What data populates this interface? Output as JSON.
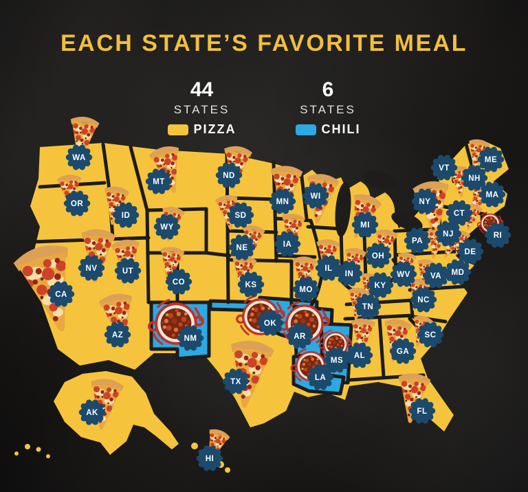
{
  "title": "EACH STATE’S FAVORITE MEAL",
  "legend": [
    {
      "count": "44",
      "label": "STATES",
      "food": "PIZZA",
      "color": "#F5C43C"
    },
    {
      "count": "6",
      "label": "STATES",
      "food": "CHILI",
      "color": "#2CA9E2"
    }
  ],
  "colors": {
    "title": "#F2BE3C",
    "pizza": "#F5C43C",
    "chili": "#2CA9E2",
    "badge": "#1B4A6D",
    "border": "#1D1C1B",
    "lake": "#1E1D1B"
  },
  "map": {
    "states": [
      {
        "abbr": "WA",
        "food": "pizza",
        "badge": [
          115,
          229
        ],
        "icon": [
          120,
          202
        ],
        "size": 72,
        "rot": 8
      },
      {
        "abbr": "OR",
        "food": "pizza",
        "badge": [
          112,
          296
        ],
        "icon": [
          102,
          281
        ],
        "size": 60,
        "rot": -4
      },
      {
        "abbr": "ID",
        "food": "pizza",
        "badge": [
          183,
          313
        ],
        "icon": [
          167,
          299
        ],
        "size": 62,
        "rot": 8
      },
      {
        "abbr": "MT",
        "food": "pizza",
        "badge": [
          231,
          264
        ],
        "icon": [
          245,
          247
        ],
        "size": 76,
        "rot": -14
      },
      {
        "abbr": "WY",
        "food": "pizza",
        "badge": [
          243,
          330
        ],
        "icon": [
          249,
          326
        ],
        "size": 56,
        "rot": 10
      },
      {
        "abbr": "NV",
        "food": "pizza",
        "badge": [
          133,
          390
        ],
        "icon": [
          141,
          372
        ],
        "size": 86,
        "rot": 4
      },
      {
        "abbr": "UT",
        "food": "pizza",
        "badge": [
          186,
          394
        ],
        "icon": [
          185,
          380
        ],
        "size": 70,
        "rot": -6
      },
      {
        "abbr": "CA",
        "food": "pizza",
        "badge": [
          89,
          428
        ],
        "icon": [
          73,
          420
        ],
        "size": 140,
        "rot": -16
      },
      {
        "abbr": "AZ",
        "food": "pizza",
        "badge": [
          171,
          487
        ],
        "icon": [
          173,
          465
        ],
        "size": 84,
        "rot": -10
      },
      {
        "abbr": "CO",
        "food": "pizza",
        "badge": [
          260,
          410
        ],
        "icon": [
          248,
          386
        ],
        "size": 60,
        "rot": 8
      },
      {
        "abbr": "NM",
        "food": "chili",
        "badge": [
          277,
          492
        ],
        "icon": [
          256,
          471
        ],
        "size": 64
      },
      {
        "abbr": "ND",
        "food": "pizza",
        "badge": [
          333,
          255
        ],
        "icon": [
          343,
          244
        ],
        "size": 70,
        "rot": 8
      },
      {
        "abbr": "SD",
        "food": "pizza",
        "badge": [
          350,
          313
        ],
        "icon": [
          332,
          309
        ],
        "size": 56,
        "rot": -8
      },
      {
        "abbr": "NE",
        "food": "pizza",
        "badge": [
          352,
          360
        ],
        "icon": [
          366,
          353
        ],
        "size": 56,
        "rot": 10
      },
      {
        "abbr": "KS",
        "food": "pizza",
        "badge": [
          365,
          414
        ],
        "icon": [
          354,
          399
        ],
        "size": 60,
        "rot": 5
      },
      {
        "abbr": "OK",
        "food": "chili",
        "badge": [
          393,
          470
        ],
        "icon": [
          379,
          461
        ],
        "size": 56
      },
      {
        "abbr": "TX",
        "food": "pizza",
        "badge": [
          343,
          555
        ],
        "icon": [
          362,
          544
        ],
        "size": 108,
        "rot": 8
      },
      {
        "abbr": "MN",
        "food": "pizza",
        "badge": [
          411,
          293
        ],
        "icon": [
          415,
          277
        ],
        "size": 80,
        "rot": 4
      },
      {
        "abbr": "IA",
        "food": "pizza",
        "badge": [
          418,
          355
        ],
        "icon": [
          425,
          337
        ],
        "size": 58,
        "rot": 6
      },
      {
        "abbr": "MO",
        "food": "pizza",
        "badge": [
          445,
          421
        ],
        "icon": [
          442,
          400
        ],
        "size": 60,
        "rot": 5
      },
      {
        "abbr": "AR",
        "food": "chili",
        "badge": [
          436,
          489
        ],
        "icon": [
          443,
          471
        ],
        "size": 58
      },
      {
        "abbr": "LA",
        "food": "chili",
        "badge": [
          466,
          549
        ],
        "icon": [
          452,
          533
        ],
        "size": 46
      },
      {
        "abbr": "MS",
        "food": "chili",
        "badge": [
          490,
          524
        ],
        "icon": [
          488,
          501
        ],
        "size": 38
      },
      {
        "abbr": "WI",
        "food": "pizza",
        "badge": [
          459,
          285
        ],
        "icon": [
          466,
          289
        ],
        "size": 80,
        "rot": 8
      },
      {
        "abbr": "IL",
        "food": "pizza",
        "badge": [
          478,
          390
        ],
        "icon": [
          476,
          374
        ],
        "size": 58,
        "rot": 4
      },
      {
        "abbr": "IN",
        "food": "pizza",
        "badge": [
          508,
          398
        ],
        "icon": [
          515,
          385
        ],
        "size": 54,
        "rot": 8
      },
      {
        "abbr": "MI",
        "food": "pizza",
        "badge": [
          531,
          327
        ],
        "icon": [
          527,
          315
        ],
        "size": 72,
        "rot": 18
      },
      {
        "abbr": "OH",
        "food": "pizza",
        "badge": [
          550,
          372
        ],
        "icon": [
          560,
          359
        ],
        "size": 56,
        "rot": 8
      },
      {
        "abbr": "KY",
        "food": "pizza",
        "badge": [
          553,
          415
        ],
        "icon": [
          536,
          418
        ],
        "size": 46,
        "rot": 10
      },
      {
        "abbr": "TN",
        "food": "pizza",
        "badge": [
          535,
          446
        ],
        "icon": [
          520,
          442
        ],
        "size": 52,
        "rot": 6
      },
      {
        "abbr": "WV",
        "food": "pizza",
        "badge": [
          587,
          399
        ],
        "icon": [
          590,
          388
        ],
        "size": 46,
        "rot": 8
      },
      {
        "abbr": "VA",
        "food": "pizza",
        "badge": [
          634,
          401
        ],
        "icon": [
          618,
          398
        ],
        "size": 46,
        "rot": 10
      },
      {
        "abbr": "NC",
        "food": "pizza",
        "badge": [
          616,
          436
        ],
        "icon": [
          607,
          429
        ],
        "size": 52,
        "rot": 12
      },
      {
        "abbr": "SC",
        "food": "pizza",
        "badge": [
          626,
          487
        ],
        "icon": [
          612,
          482
        ],
        "size": 50,
        "rot": 14
      },
      {
        "abbr": "GA",
        "food": "pizza",
        "badge": [
          586,
          511
        ],
        "icon": [
          576,
          495
        ],
        "size": 68,
        "rot": 8
      },
      {
        "abbr": "AL",
        "food": "pizza",
        "badge": [
          523,
          517
        ],
        "icon": [
          527,
          490
        ],
        "size": 60,
        "rot": 4
      },
      {
        "abbr": "FL",
        "food": "pizza",
        "badge": [
          614,
          598
        ],
        "icon": [
          600,
          579
        ],
        "size": 80,
        "rot": 6
      },
      {
        "abbr": "PA",
        "food": "pizza",
        "badge": [
          607,
          350
        ],
        "icon": [
          634,
          354
        ],
        "size": 50,
        "rot": 10
      },
      {
        "abbr": "NY",
        "food": "pizza",
        "badge": [
          618,
          293
        ],
        "icon": [
          630,
          304
        ],
        "size": 90,
        "rot": -6
      },
      {
        "abbr": "NJ",
        "food": "pizza",
        "badge": [
          652,
          340
        ],
        "icon": [
          656,
          357
        ],
        "size": 44,
        "rot": 26
      },
      {
        "abbr": "DE",
        "food": "pizza",
        "badge": [
          684,
          366
        ],
        "icon": [
          669,
          353
        ],
        "size": 40,
        "rot": 16
      },
      {
        "abbr": "MD",
        "food": "pizza",
        "badge": [
          666,
          396
        ],
        "icon": null
      },
      {
        "abbr": "VT",
        "food": "pizza",
        "badge": [
          646,
          244
        ],
        "icon": null
      },
      {
        "abbr": "NH",
        "food": "pizza",
        "badge": [
          690,
          259
        ],
        "icon": [
          668,
          264
        ],
        "size": 50,
        "rot": -8
      },
      {
        "abbr": "ME",
        "food": "pizza",
        "badge": [
          714,
          232
        ],
        "icon": [
          694,
          226
        ],
        "size": 52,
        "rot": 10
      },
      {
        "abbr": "MA",
        "food": "pizza",
        "badge": [
          716,
          283
        ],
        "icon": [
          695,
          291
        ],
        "size": 50,
        "rot": 24
      },
      {
        "abbr": "CT",
        "food": "pizza",
        "badge": [
          668,
          310
        ],
        "icon": [
          686,
          316
        ],
        "size": 42,
        "rot": 16
      },
      {
        "abbr": "RI",
        "food": "chili",
        "badge": [
          724,
          342
        ],
        "icon": [
          713,
          325
        ],
        "size": 30
      },
      {
        "abbr": "AK",
        "food": "pizza",
        "badge": [
          134,
          600
        ],
        "icon": [
          152,
          588
        ],
        "size": 82,
        "rot": 8
      },
      {
        "abbr": "HI",
        "food": "pizza",
        "badge": [
          305,
          667
        ],
        "icon": [
          313,
          649
        ],
        "size": 54,
        "rot": 20
      }
    ]
  }
}
